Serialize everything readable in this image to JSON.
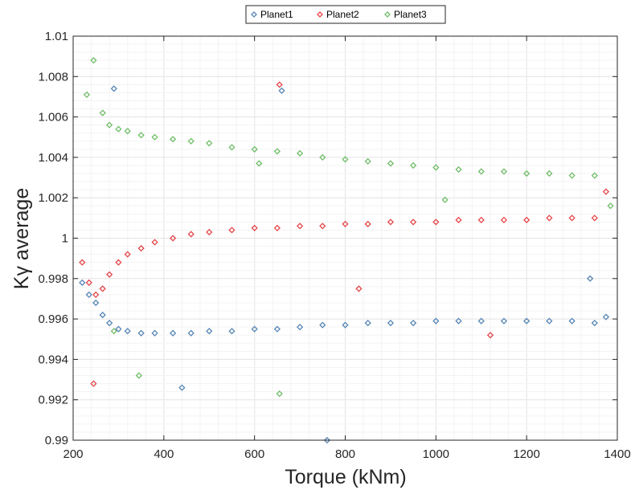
{
  "chart_data": {
    "type": "scatter",
    "title": "",
    "xlabel": "Torque  (kNm)",
    "ylabel": "Kγ  average",
    "xlim": [
      200,
      1400
    ],
    "ylim": [
      0.99,
      1.01
    ],
    "xticks": [
      "200",
      "400",
      "600",
      "800",
      "1000",
      "1200",
      "1400"
    ],
    "yticks": [
      "0.99",
      "0.992",
      "0.994",
      "0.996",
      "0.998",
      "1",
      "1.002",
      "1.004",
      "1.006",
      "1.008",
      "1.01"
    ],
    "grid": true,
    "legend_position": "top-center",
    "marker": "diamond-open",
    "series": [
      {
        "name": "Planet1",
        "color": "#5686b5",
        "points": [
          [
            220,
            0.9978
          ],
          [
            235,
            0.9972
          ],
          [
            250,
            0.9968
          ],
          [
            265,
            0.9962
          ],
          [
            280,
            0.9958
          ],
          [
            300,
            0.9955
          ],
          [
            320,
            0.9954
          ],
          [
            350,
            0.9953
          ],
          [
            380,
            0.9953
          ],
          [
            420,
            0.9953
          ],
          [
            460,
            0.9953
          ],
          [
            500,
            0.9954
          ],
          [
            550,
            0.9954
          ],
          [
            600,
            0.9955
          ],
          [
            650,
            0.9955
          ],
          [
            700,
            0.9956
          ],
          [
            750,
            0.9957
          ],
          [
            800,
            0.9957
          ],
          [
            850,
            0.9958
          ],
          [
            900,
            0.9958
          ],
          [
            950,
            0.9958
          ],
          [
            1000,
            0.9959
          ],
          [
            1050,
            0.9959
          ],
          [
            1100,
            0.9959
          ],
          [
            1150,
            0.9959
          ],
          [
            1200,
            0.9959
          ],
          [
            1250,
            0.9959
          ],
          [
            1300,
            0.9959
          ],
          [
            1350,
            0.9958
          ],
          [
            1375,
            0.9961
          ],
          [
            290,
            1.0074
          ],
          [
            660,
            1.0073
          ],
          [
            440,
            0.9926
          ],
          [
            760,
            0.99
          ],
          [
            1340,
            0.998
          ]
        ]
      },
      {
        "name": "Planet2",
        "color": "#e54649",
        "points": [
          [
            220,
            0.9988
          ],
          [
            235,
            0.9978
          ],
          [
            250,
            0.9972
          ],
          [
            265,
            0.9975
          ],
          [
            280,
            0.9982
          ],
          [
            300,
            0.9988
          ],
          [
            320,
            0.9992
          ],
          [
            350,
            0.9995
          ],
          [
            380,
            0.9998
          ],
          [
            420,
            1.0
          ],
          [
            460,
            1.0002
          ],
          [
            500,
            1.0003
          ],
          [
            550,
            1.0004
          ],
          [
            600,
            1.0005
          ],
          [
            650,
            1.0005
          ],
          [
            700,
            1.0006
          ],
          [
            750,
            1.0006
          ],
          [
            800,
            1.0007
          ],
          [
            850,
            1.0007
          ],
          [
            900,
            1.0008
          ],
          [
            950,
            1.0008
          ],
          [
            1000,
            1.0008
          ],
          [
            1050,
            1.0009
          ],
          [
            1100,
            1.0009
          ],
          [
            1150,
            1.0009
          ],
          [
            1200,
            1.0009
          ],
          [
            1250,
            1.001
          ],
          [
            1300,
            1.001
          ],
          [
            1350,
            1.001
          ],
          [
            1375,
            1.0023
          ],
          [
            655,
            1.0076
          ],
          [
            245,
            0.9928
          ],
          [
            1120,
            0.9952
          ],
          [
            830,
            0.9975
          ]
        ]
      },
      {
        "name": "Planet3",
        "color": "#70bd68",
        "points": [
          [
            230,
            1.0071
          ],
          [
            245,
            1.0088
          ],
          [
            265,
            1.0062
          ],
          [
            280,
            1.0056
          ],
          [
            300,
            1.0054
          ],
          [
            320,
            1.0053
          ],
          [
            350,
            1.0051
          ],
          [
            380,
            1.005
          ],
          [
            420,
            1.0049
          ],
          [
            460,
            1.0048
          ],
          [
            500,
            1.0047
          ],
          [
            550,
            1.0045
          ],
          [
            600,
            1.0044
          ],
          [
            650,
            1.0043
          ],
          [
            700,
            1.0042
          ],
          [
            750,
            1.004
          ],
          [
            800,
            1.0039
          ],
          [
            850,
            1.0038
          ],
          [
            900,
            1.0037
          ],
          [
            950,
            1.0036
          ],
          [
            1000,
            1.0035
          ],
          [
            1050,
            1.0034
          ],
          [
            1100,
            1.0033
          ],
          [
            1150,
            1.0033
          ],
          [
            1200,
            1.0032
          ],
          [
            1250,
            1.0032
          ],
          [
            1300,
            1.0031
          ],
          [
            1350,
            1.0031
          ],
          [
            1385,
            1.0016
          ],
          [
            655,
            0.9923
          ],
          [
            345,
            0.9932
          ],
          [
            290,
            0.9954
          ],
          [
            610,
            1.0037
          ],
          [
            1020,
            1.0019
          ]
        ]
      }
    ]
  }
}
